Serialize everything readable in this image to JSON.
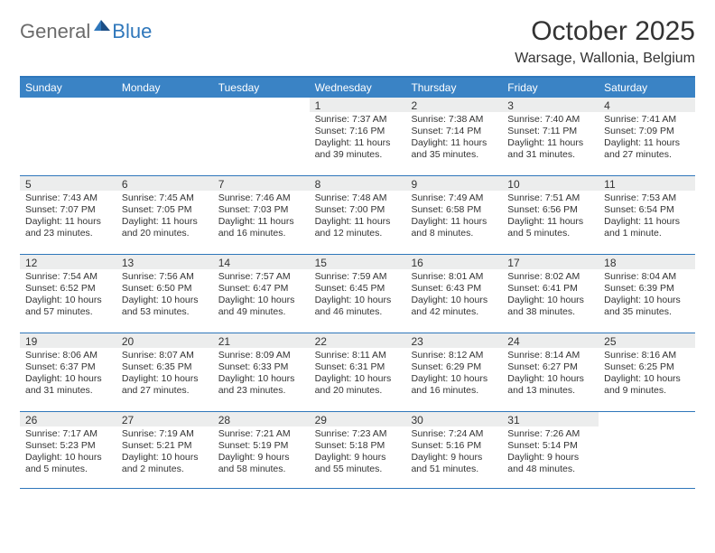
{
  "brand": {
    "text1": "General",
    "text2": "Blue",
    "color_gray": "#6b6b6b",
    "color_blue": "#2f77bb"
  },
  "title": "October 2025",
  "location": "Warsage, Wallonia, Belgium",
  "colors": {
    "header_bg": "#3a83c5",
    "rule": "#2f77bb",
    "date_bar": "#eceded",
    "text": "#333333",
    "bg": "#ffffff"
  },
  "day_names": [
    "Sunday",
    "Monday",
    "Tuesday",
    "Wednesday",
    "Thursday",
    "Friday",
    "Saturday"
  ],
  "weeks": [
    [
      {
        "date": "",
        "sunrise": "",
        "sunset": "",
        "daylight": ""
      },
      {
        "date": "",
        "sunrise": "",
        "sunset": "",
        "daylight": ""
      },
      {
        "date": "",
        "sunrise": "",
        "sunset": "",
        "daylight": ""
      },
      {
        "date": "1",
        "sunrise": "Sunrise: 7:37 AM",
        "sunset": "Sunset: 7:16 PM",
        "daylight": "Daylight: 11 hours and 39 minutes."
      },
      {
        "date": "2",
        "sunrise": "Sunrise: 7:38 AM",
        "sunset": "Sunset: 7:14 PM",
        "daylight": "Daylight: 11 hours and 35 minutes."
      },
      {
        "date": "3",
        "sunrise": "Sunrise: 7:40 AM",
        "sunset": "Sunset: 7:11 PM",
        "daylight": "Daylight: 11 hours and 31 minutes."
      },
      {
        "date": "4",
        "sunrise": "Sunrise: 7:41 AM",
        "sunset": "Sunset: 7:09 PM",
        "daylight": "Daylight: 11 hours and 27 minutes."
      }
    ],
    [
      {
        "date": "5",
        "sunrise": "Sunrise: 7:43 AM",
        "sunset": "Sunset: 7:07 PM",
        "daylight": "Daylight: 11 hours and 23 minutes."
      },
      {
        "date": "6",
        "sunrise": "Sunrise: 7:45 AM",
        "sunset": "Sunset: 7:05 PM",
        "daylight": "Daylight: 11 hours and 20 minutes."
      },
      {
        "date": "7",
        "sunrise": "Sunrise: 7:46 AM",
        "sunset": "Sunset: 7:03 PM",
        "daylight": "Daylight: 11 hours and 16 minutes."
      },
      {
        "date": "8",
        "sunrise": "Sunrise: 7:48 AM",
        "sunset": "Sunset: 7:00 PM",
        "daylight": "Daylight: 11 hours and 12 minutes."
      },
      {
        "date": "9",
        "sunrise": "Sunrise: 7:49 AM",
        "sunset": "Sunset: 6:58 PM",
        "daylight": "Daylight: 11 hours and 8 minutes."
      },
      {
        "date": "10",
        "sunrise": "Sunrise: 7:51 AM",
        "sunset": "Sunset: 6:56 PM",
        "daylight": "Daylight: 11 hours and 5 minutes."
      },
      {
        "date": "11",
        "sunrise": "Sunrise: 7:53 AM",
        "sunset": "Sunset: 6:54 PM",
        "daylight": "Daylight: 11 hours and 1 minute."
      }
    ],
    [
      {
        "date": "12",
        "sunrise": "Sunrise: 7:54 AM",
        "sunset": "Sunset: 6:52 PM",
        "daylight": "Daylight: 10 hours and 57 minutes."
      },
      {
        "date": "13",
        "sunrise": "Sunrise: 7:56 AM",
        "sunset": "Sunset: 6:50 PM",
        "daylight": "Daylight: 10 hours and 53 minutes."
      },
      {
        "date": "14",
        "sunrise": "Sunrise: 7:57 AM",
        "sunset": "Sunset: 6:47 PM",
        "daylight": "Daylight: 10 hours and 49 minutes."
      },
      {
        "date": "15",
        "sunrise": "Sunrise: 7:59 AM",
        "sunset": "Sunset: 6:45 PM",
        "daylight": "Daylight: 10 hours and 46 minutes."
      },
      {
        "date": "16",
        "sunrise": "Sunrise: 8:01 AM",
        "sunset": "Sunset: 6:43 PM",
        "daylight": "Daylight: 10 hours and 42 minutes."
      },
      {
        "date": "17",
        "sunrise": "Sunrise: 8:02 AM",
        "sunset": "Sunset: 6:41 PM",
        "daylight": "Daylight: 10 hours and 38 minutes."
      },
      {
        "date": "18",
        "sunrise": "Sunrise: 8:04 AM",
        "sunset": "Sunset: 6:39 PM",
        "daylight": "Daylight: 10 hours and 35 minutes."
      }
    ],
    [
      {
        "date": "19",
        "sunrise": "Sunrise: 8:06 AM",
        "sunset": "Sunset: 6:37 PM",
        "daylight": "Daylight: 10 hours and 31 minutes."
      },
      {
        "date": "20",
        "sunrise": "Sunrise: 8:07 AM",
        "sunset": "Sunset: 6:35 PM",
        "daylight": "Daylight: 10 hours and 27 minutes."
      },
      {
        "date": "21",
        "sunrise": "Sunrise: 8:09 AM",
        "sunset": "Sunset: 6:33 PM",
        "daylight": "Daylight: 10 hours and 23 minutes."
      },
      {
        "date": "22",
        "sunrise": "Sunrise: 8:11 AM",
        "sunset": "Sunset: 6:31 PM",
        "daylight": "Daylight: 10 hours and 20 minutes."
      },
      {
        "date": "23",
        "sunrise": "Sunrise: 8:12 AM",
        "sunset": "Sunset: 6:29 PM",
        "daylight": "Daylight: 10 hours and 16 minutes."
      },
      {
        "date": "24",
        "sunrise": "Sunrise: 8:14 AM",
        "sunset": "Sunset: 6:27 PM",
        "daylight": "Daylight: 10 hours and 13 minutes."
      },
      {
        "date": "25",
        "sunrise": "Sunrise: 8:16 AM",
        "sunset": "Sunset: 6:25 PM",
        "daylight": "Daylight: 10 hours and 9 minutes."
      }
    ],
    [
      {
        "date": "26",
        "sunrise": "Sunrise: 7:17 AM",
        "sunset": "Sunset: 5:23 PM",
        "daylight": "Daylight: 10 hours and 5 minutes."
      },
      {
        "date": "27",
        "sunrise": "Sunrise: 7:19 AM",
        "sunset": "Sunset: 5:21 PM",
        "daylight": "Daylight: 10 hours and 2 minutes."
      },
      {
        "date": "28",
        "sunrise": "Sunrise: 7:21 AM",
        "sunset": "Sunset: 5:19 PM",
        "daylight": "Daylight: 9 hours and 58 minutes."
      },
      {
        "date": "29",
        "sunrise": "Sunrise: 7:23 AM",
        "sunset": "Sunset: 5:18 PM",
        "daylight": "Daylight: 9 hours and 55 minutes."
      },
      {
        "date": "30",
        "sunrise": "Sunrise: 7:24 AM",
        "sunset": "Sunset: 5:16 PM",
        "daylight": "Daylight: 9 hours and 51 minutes."
      },
      {
        "date": "31",
        "sunrise": "Sunrise: 7:26 AM",
        "sunset": "Sunset: 5:14 PM",
        "daylight": "Daylight: 9 hours and 48 minutes."
      },
      {
        "date": "",
        "sunrise": "",
        "sunset": "",
        "daylight": ""
      }
    ]
  ]
}
